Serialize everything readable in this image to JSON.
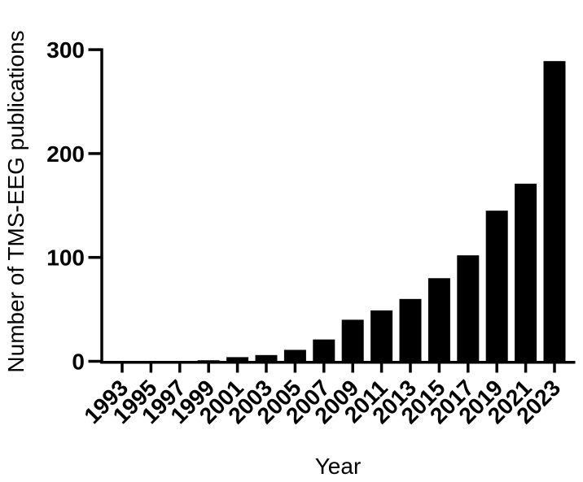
{
  "chart_data": {
    "type": "bar",
    "title": "",
    "xlabel": "Year",
    "ylabel": "Number of TMS-EEG publications",
    "categories": [
      "1993",
      "1995",
      "1997",
      "1999",
      "2001",
      "2003",
      "2005",
      "2007",
      "2009",
      "2011",
      "2013",
      "2015",
      "2017",
      "2019",
      "2021",
      "2023"
    ],
    "values": [
      0,
      0,
      0,
      1,
      4,
      6,
      11,
      21,
      40,
      49,
      60,
      80,
      102,
      145,
      171,
      289
    ],
    "ylim": [
      0,
      300
    ],
    "yticks": [
      0,
      100,
      200,
      300
    ],
    "xtick_rotation_deg": 45,
    "bar_color": "#000000",
    "axis_color": "#000000",
    "background_color": "#ffffff",
    "grid": false,
    "legend": "none"
  }
}
